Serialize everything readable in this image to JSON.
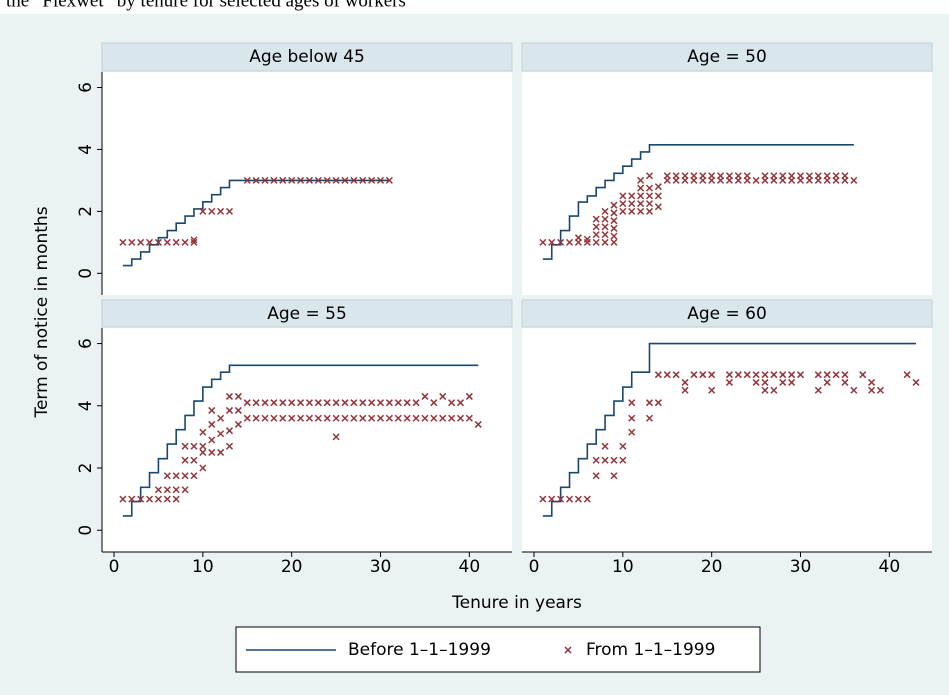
{
  "chart_data": {
    "type": "facet",
    "caption": "the “Flexwet” by tenure for selected ages of workers",
    "x_label": "Tenure in years",
    "y_label": "Term of notice in months",
    "xlim": [
      -1.35,
      44.8
    ],
    "ylim": [
      -0.7,
      6.5
    ],
    "xticks": [
      0,
      10,
      20,
      30,
      40
    ],
    "yticks": [
      0,
      2,
      4,
      6
    ],
    "series": [
      {
        "name": "Before 1–1–1999",
        "color": "#1a476f",
        "style": "step"
      },
      {
        "name": "From 1–1–1999",
        "color": "#90353b",
        "style": "x-marker"
      }
    ],
    "panels": [
      {
        "title": "Age below 45",
        "series": [
          {
            "x": [
              1,
              2,
              3,
              4,
              5,
              6,
              7,
              8,
              9,
              10,
              11,
              12,
              13,
              31
            ],
            "values": [
              0.25,
              0.46,
              0.69,
              0.92,
              1.15,
              1.38,
              1.62,
              1.85,
              2.08,
              2.31,
              2.54,
              2.77,
              3,
              3
            ]
          },
          {
            "x": [
              1,
              2,
              3,
              4,
              5,
              6,
              7,
              8,
              9,
              9,
              10,
              11,
              12,
              13,
              15,
              16,
              17,
              18,
              19,
              20,
              21,
              22,
              23,
              24,
              25,
              26,
              27,
              28,
              29,
              30,
              31
            ],
            "values": [
              1,
              1,
              1,
              1,
              1,
              1,
              1,
              1,
              1,
              1.08,
              2,
              2,
              2,
              2,
              3,
              3,
              3,
              3,
              3,
              3,
              3,
              3,
              3,
              3,
              3,
              3,
              3,
              3,
              3,
              3,
              3
            ]
          }
        ]
      },
      {
        "title": "Age = 50",
        "series": [
          {
            "x": [
              1,
              2,
              3,
              4,
              5,
              6,
              7,
              8,
              9,
              10,
              11,
              12,
              13,
              36
            ],
            "values": [
              0.46,
              0.92,
              1.38,
              1.85,
              2.3,
              2.5,
              2.77,
              3,
              3.23,
              3.46,
              3.69,
              3.92,
              4.15,
              4.15
            ]
          },
          {
            "x": [
              1,
              2,
              3,
              4,
              5,
              5,
              6,
              6,
              7,
              7,
              7,
              7,
              8,
              8,
              8,
              8,
              8,
              9,
              9,
              9,
              9,
              9,
              9,
              10,
              10,
              10,
              11,
              11,
              11,
              12,
              12,
              12,
              12,
              12,
              13,
              13,
              13,
              13,
              13,
              14,
              14,
              14,
              15,
              15,
              16,
              16,
              17,
              17,
              18,
              18,
              19,
              19,
              20,
              20,
              21,
              21,
              22,
              22,
              23,
              23,
              24,
              24,
              25,
              26,
              26,
              27,
              27,
              28,
              28,
              29,
              29,
              30,
              30,
              31,
              31,
              32,
              32,
              33,
              33,
              34,
              34,
              35,
              35,
              36
            ],
            "values": [
              1,
              1,
              1,
              1,
              1,
              1.15,
              1,
              1.1,
              1,
              1.25,
              1.5,
              1.75,
              1,
              1.25,
              1.5,
              1.75,
              2,
              1,
              1.2,
              1.45,
              1.7,
              1.95,
              2.2,
              2,
              2.25,
              2.5,
              2,
              2.25,
              2.5,
              2,
              2.25,
              2.5,
              2.75,
              3,
              2,
              2.25,
              2.5,
              2.75,
              3.15,
              2.15,
              2.5,
              2.8,
              3,
              3.15,
              3,
              3.15,
              3,
              3.15,
              3,
              3.15,
              3,
              3.15,
              3,
              3.15,
              3,
              3.15,
              3,
              3.15,
              3,
              3.15,
              3,
              3.15,
              3,
              3,
              3.15,
              3,
              3.15,
              3,
              3.15,
              3,
              3.15,
              3,
              3.15,
              3,
              3.15,
              3,
              3.15,
              3,
              3.15,
              3,
              3.15,
              3,
              3.15,
              3
            ]
          }
        ]
      },
      {
        "title": "Age = 55",
        "series": [
          {
            "x": [
              1,
              2,
              3,
              4,
              5,
              6,
              7,
              8,
              9,
              10,
              11,
              12,
              13,
              41
            ],
            "values": [
              0.46,
              0.92,
              1.38,
              1.85,
              2.3,
              2.77,
              3.23,
              3.69,
              4.15,
              4.6,
              4.85,
              5.08,
              5.3,
              5.3
            ]
          },
          {
            "x": [
              1,
              2,
              3,
              4,
              5,
              5,
              6,
              6,
              6,
              7,
              7,
              7,
              8,
              8,
              8,
              8,
              9,
              9,
              9,
              10,
              10,
              10,
              10,
              11,
              11,
              11,
              11,
              12,
              12,
              12,
              13,
              13,
              13,
              13,
              14,
              14,
              14,
              15,
              15,
              16,
              16,
              17,
              17,
              18,
              18,
              19,
              19,
              20,
              20,
              21,
              21,
              22,
              22,
              23,
              23,
              24,
              24,
              25,
              25,
              25,
              26,
              26,
              27,
              27,
              28,
              28,
              29,
              29,
              30,
              30,
              31,
              31,
              32,
              32,
              33,
              33,
              34,
              34,
              35,
              35,
              36,
              36,
              37,
              37,
              38,
              38,
              39,
              39,
              40,
              40,
              41
            ],
            "values": [
              1,
              1,
              1,
              1,
              1,
              1.3,
              1,
              1.3,
              1.75,
              1,
              1.3,
              1.75,
              1.3,
              1.75,
              2.25,
              2.7,
              1.75,
              2.25,
              2.7,
              2,
              2.5,
              2.7,
              3.15,
              2.5,
              2.9,
              3.4,
              3.85,
              2.5,
              3.1,
              3.6,
              2.7,
              3.2,
              3.85,
              4.3,
              3.4,
              3.85,
              4.3,
              3.6,
              4.1,
              3.6,
              4.1,
              3.6,
              4.1,
              3.6,
              4.1,
              3.6,
              4.1,
              3.6,
              4.1,
              3.6,
              4.1,
              3.6,
              4.1,
              3.6,
              4.1,
              3.6,
              4.1,
              3,
              3.6,
              4.1,
              3.6,
              4.1,
              3.6,
              4.1,
              3.6,
              4.1,
              3.6,
              4.1,
              3.6,
              4.1,
              3.6,
              4.1,
              3.6,
              4.1,
              3.6,
              4.1,
              3.6,
              4.1,
              3.6,
              4.3,
              3.6,
              4.1,
              3.6,
              4.3,
              3.6,
              4.1,
              3.6,
              4.1,
              3.6,
              4.3,
              3.4
            ]
          }
        ]
      },
      {
        "title": "Age = 60",
        "series": [
          {
            "x": [
              1,
              2,
              3,
              4,
              5,
              6,
              7,
              8,
              9,
              10,
              11,
              12,
              13,
              43
            ],
            "values": [
              0.46,
              0.92,
              1.38,
              1.85,
              2.3,
              2.77,
              3.23,
              3.69,
              4.15,
              4.6,
              5.08,
              5.08,
              6,
              6
            ]
          },
          {
            "x": [
              1,
              2,
              3,
              4,
              5,
              6,
              7,
              7,
              8,
              8,
              9,
              9,
              10,
              10,
              11,
              11,
              11,
              13,
              13,
              14,
              14,
              15,
              16,
              17,
              17,
              18,
              19,
              20,
              20,
              22,
              22,
              23,
              24,
              25,
              25,
              26,
              26,
              26,
              27,
              27,
              28,
              28,
              29,
              29,
              30,
              32,
              32,
              33,
              33,
              34,
              35,
              35,
              36,
              37,
              38,
              38,
              39,
              42,
              43
            ],
            "values": [
              1,
              1,
              1,
              1,
              1,
              1,
              1.75,
              2.25,
              2.25,
              2.7,
              1.75,
              2.25,
              2.25,
              2.7,
              3.15,
              3.6,
              4.1,
              3.6,
              4.1,
              4.1,
              5,
              5,
              5,
              4.5,
              4.75,
              5,
              5,
              4.5,
              5,
              4.75,
              5,
              5,
              5,
              4.75,
              5,
              4.5,
              4.75,
              5,
              4.5,
              5,
              4.75,
              5,
              4.75,
              5,
              5,
              4.5,
              5,
              4.75,
              5,
              5,
              4.75,
              5,
              4.5,
              5,
              4.5,
              4.75,
              4.5,
              5,
              4.75
            ]
          }
        ]
      }
    ]
  }
}
